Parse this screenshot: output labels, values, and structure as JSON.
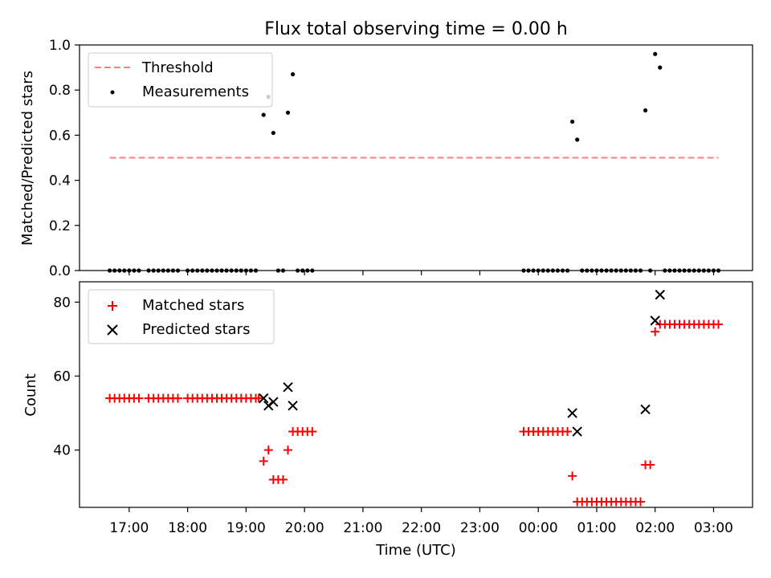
{
  "chart_data": [
    {
      "type": "scatter",
      "title": "Flux total observing time = 0.00 h",
      "xlabel": "",
      "ylabel": "Matched/Predicted stars",
      "xlim": [
        "16:09",
        "03:40"
      ],
      "ylim": [
        0,
        1.0
      ],
      "y_ticks": [
        "0.0",
        "0.2",
        "0.4",
        "0.6",
        "0.8",
        "1.0"
      ],
      "legend": {
        "placement": "top-left",
        "entries": [
          "Threshold",
          "Measurements"
        ]
      },
      "series": [
        {
          "name": "Threshold",
          "style": "dashed-line",
          "color": "#ff7f7f",
          "points": [
            [
              "16:40",
              0.5
            ],
            [
              "03:05",
              0.5
            ]
          ]
        },
        {
          "name": "Measurements",
          "style": "dot",
          "color": "#000000",
          "points": [
            [
              "16:40",
              0
            ],
            [
              "16:45",
              0
            ],
            [
              "16:50",
              0
            ],
            [
              "16:55",
              0
            ],
            [
              "17:00",
              0
            ],
            [
              "17:05",
              0
            ],
            [
              "17:10",
              0
            ],
            [
              "17:20",
              0
            ],
            [
              "17:25",
              0
            ],
            [
              "17:30",
              0
            ],
            [
              "17:35",
              0
            ],
            [
              "17:40",
              0
            ],
            [
              "17:45",
              0
            ],
            [
              "17:50",
              0
            ],
            [
              "18:00",
              0
            ],
            [
              "18:05",
              0
            ],
            [
              "18:10",
              0
            ],
            [
              "18:15",
              0
            ],
            [
              "18:20",
              0
            ],
            [
              "18:25",
              0
            ],
            [
              "18:30",
              0
            ],
            [
              "18:35",
              0
            ],
            [
              "18:40",
              0
            ],
            [
              "18:45",
              0
            ],
            [
              "18:50",
              0
            ],
            [
              "18:55",
              0
            ],
            [
              "19:00",
              0
            ],
            [
              "19:05",
              0
            ],
            [
              "19:10",
              0
            ],
            [
              "19:18",
              0.69
            ],
            [
              "19:23",
              0.77
            ],
            [
              "19:28",
              0.61
            ],
            [
              "19:33",
              0
            ],
            [
              "19:38",
              0
            ],
            [
              "19:43",
              0.7
            ],
            [
              "19:48",
              0.87
            ],
            [
              "19:53",
              0
            ],
            [
              "19:58",
              0
            ],
            [
              "20:03",
              0
            ],
            [
              "20:08",
              0
            ],
            [
              "23:45",
              0
            ],
            [
              "23:50",
              0
            ],
            [
              "23:55",
              0
            ],
            [
              "00:00",
              0
            ],
            [
              "00:05",
              0
            ],
            [
              "00:10",
              0
            ],
            [
              "00:15",
              0
            ],
            [
              "00:20",
              0
            ],
            [
              "00:25",
              0
            ],
            [
              "00:30",
              0
            ],
            [
              "00:35",
              0.66
            ],
            [
              "00:40",
              0.58
            ],
            [
              "00:45",
              0
            ],
            [
              "00:50",
              0
            ],
            [
              "00:55",
              0
            ],
            [
              "01:00",
              0
            ],
            [
              "01:05",
              0
            ],
            [
              "01:10",
              0
            ],
            [
              "01:15",
              0
            ],
            [
              "01:20",
              0
            ],
            [
              "01:25",
              0
            ],
            [
              "01:30",
              0
            ],
            [
              "01:35",
              0
            ],
            [
              "01:40",
              0
            ],
            [
              "01:45",
              0
            ],
            [
              "01:50",
              0.71
            ],
            [
              "01:55",
              0
            ],
            [
              "02:00",
              0.96
            ],
            [
              "02:05",
              0.9
            ],
            [
              "02:10",
              0
            ],
            [
              "02:15",
              0
            ],
            [
              "02:20",
              0
            ],
            [
              "02:25",
              0
            ],
            [
              "02:30",
              0
            ],
            [
              "02:35",
              0
            ],
            [
              "02:40",
              0
            ],
            [
              "02:45",
              0
            ],
            [
              "02:50",
              0
            ],
            [
              "02:55",
              0
            ],
            [
              "03:00",
              0
            ],
            [
              "03:05",
              0
            ]
          ]
        }
      ]
    },
    {
      "type": "scatter",
      "title": "",
      "xlabel": "Time (UTC)",
      "ylabel": "Count",
      "xlim": [
        "16:09",
        "03:40"
      ],
      "ylim": [
        24.5,
        85.5
      ],
      "y_ticks": [
        "40",
        "60",
        "80"
      ],
      "x_ticks": [
        "17:00",
        "18:00",
        "19:00",
        "20:00",
        "21:00",
        "22:00",
        "23:00",
        "00:00",
        "01:00",
        "02:00",
        "03:00"
      ],
      "legend": {
        "placement": "top-left",
        "entries": [
          "Matched stars",
          "Predicted stars"
        ]
      },
      "series": [
        {
          "name": "Matched stars",
          "marker": "plus",
          "color": "#ff0000",
          "points": [
            [
              "16:40",
              54
            ],
            [
              "16:45",
              54
            ],
            [
              "16:50",
              54
            ],
            [
              "16:55",
              54
            ],
            [
              "17:00",
              54
            ],
            [
              "17:05",
              54
            ],
            [
              "17:10",
              54
            ],
            [
              "17:20",
              54
            ],
            [
              "17:25",
              54
            ],
            [
              "17:30",
              54
            ],
            [
              "17:35",
              54
            ],
            [
              "17:40",
              54
            ],
            [
              "17:45",
              54
            ],
            [
              "17:50",
              54
            ],
            [
              "18:00",
              54
            ],
            [
              "18:05",
              54
            ],
            [
              "18:10",
              54
            ],
            [
              "18:15",
              54
            ],
            [
              "18:20",
              54
            ],
            [
              "18:25",
              54
            ],
            [
              "18:30",
              54
            ],
            [
              "18:35",
              54
            ],
            [
              "18:40",
              54
            ],
            [
              "18:45",
              54
            ],
            [
              "18:50",
              54
            ],
            [
              "18:55",
              54
            ],
            [
              "19:00",
              54
            ],
            [
              "19:05",
              54
            ],
            [
              "19:10",
              54
            ],
            [
              "19:13",
              54
            ],
            [
              "19:18",
              37
            ],
            [
              "19:23",
              40
            ],
            [
              "19:28",
              32
            ],
            [
              "19:33",
              32
            ],
            [
              "19:38",
              32
            ],
            [
              "19:43",
              40
            ],
            [
              "19:48",
              45
            ],
            [
              "19:53",
              45
            ],
            [
              "19:58",
              45
            ],
            [
              "20:03",
              45
            ],
            [
              "20:08",
              45
            ],
            [
              "23:45",
              45
            ],
            [
              "23:50",
              45
            ],
            [
              "23:55",
              45
            ],
            [
              "00:00",
              45
            ],
            [
              "00:05",
              45
            ],
            [
              "00:10",
              45
            ],
            [
              "00:15",
              45
            ],
            [
              "00:20",
              45
            ],
            [
              "00:25",
              45
            ],
            [
              "00:30",
              45
            ],
            [
              "00:35",
              33
            ],
            [
              "00:40",
              26
            ],
            [
              "00:45",
              26
            ],
            [
              "00:50",
              26
            ],
            [
              "00:55",
              26
            ],
            [
              "01:00",
              26
            ],
            [
              "01:05",
              26
            ],
            [
              "01:10",
              26
            ],
            [
              "01:15",
              26
            ],
            [
              "01:20",
              26
            ],
            [
              "01:25",
              26
            ],
            [
              "01:30",
              26
            ],
            [
              "01:35",
              26
            ],
            [
              "01:40",
              26
            ],
            [
              "01:45",
              26
            ],
            [
              "01:50",
              36
            ],
            [
              "01:55",
              36
            ],
            [
              "02:00",
              72
            ],
            [
              "02:05",
              74
            ],
            [
              "02:10",
              74
            ],
            [
              "02:15",
              74
            ],
            [
              "02:20",
              74
            ],
            [
              "02:25",
              74
            ],
            [
              "02:30",
              74
            ],
            [
              "02:35",
              74
            ],
            [
              "02:40",
              74
            ],
            [
              "02:45",
              74
            ],
            [
              "02:50",
              74
            ],
            [
              "02:55",
              74
            ],
            [
              "03:00",
              74
            ],
            [
              "03:05",
              74
            ]
          ]
        },
        {
          "name": "Predicted stars",
          "marker": "x",
          "color": "#000000",
          "points": [
            [
              "19:18",
              54
            ],
            [
              "19:23",
              52
            ],
            [
              "19:28",
              53
            ],
            [
              "19:43",
              57
            ],
            [
              "19:48",
              52
            ],
            [
              "00:35",
              50
            ],
            [
              "00:40",
              45
            ],
            [
              "01:50",
              51
            ],
            [
              "02:00",
              75
            ],
            [
              "02:05",
              82
            ]
          ]
        }
      ]
    }
  ]
}
